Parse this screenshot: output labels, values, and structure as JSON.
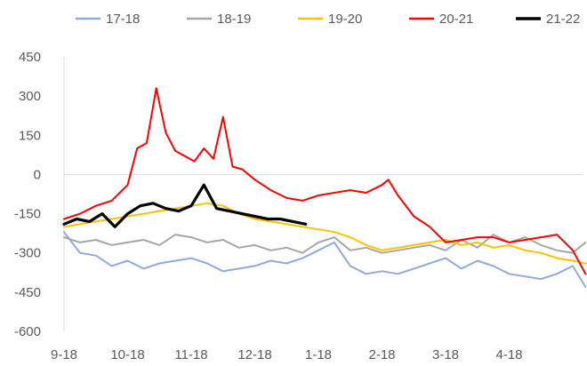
{
  "chart_data": {
    "type": "line",
    "legend_position": "top",
    "grid": false,
    "ylim": [
      -600,
      450
    ],
    "yticks": [
      450,
      300,
      150,
      0,
      -150,
      -300,
      -450,
      -600
    ],
    "xlim": [
      0,
      8.2
    ],
    "x_tick_labels": [
      "9-18",
      "10-18",
      "11-18",
      "12-18",
      "1-18",
      "2-18",
      "3-18",
      "4-18"
    ],
    "x_tick_positions": [
      0,
      1,
      2,
      3,
      4,
      5,
      6,
      7
    ],
    "series": [
      {
        "name": "17-18",
        "color": "#8faadc",
        "x": [
          0,
          0.25,
          0.5,
          0.75,
          1.0,
          1.25,
          1.5,
          1.75,
          2.0,
          2.25,
          2.5,
          2.75,
          3.0,
          3.25,
          3.5,
          3.75,
          4.0,
          4.25,
          4.5,
          4.75,
          5.0,
          5.25,
          5.5,
          5.75,
          6.0,
          6.25,
          6.5,
          6.75,
          7.0,
          7.25,
          7.5,
          7.75,
          8.0,
          8.2
        ],
        "values": [
          -220,
          -300,
          -310,
          -350,
          -330,
          -360,
          -340,
          -330,
          -320,
          -340,
          -370,
          -360,
          -350,
          -330,
          -340,
          -320,
          -290,
          -260,
          -350,
          -380,
          -370,
          -380,
          -360,
          -340,
          -320,
          -360,
          -330,
          -350,
          -380,
          -390,
          -400,
          -380,
          -350,
          -430
        ]
      },
      {
        "name": "18-19",
        "color": "#a6a6a6",
        "x": [
          0,
          0.25,
          0.5,
          0.75,
          1.0,
          1.25,
          1.5,
          1.75,
          2.0,
          2.25,
          2.5,
          2.75,
          3.0,
          3.25,
          3.5,
          3.75,
          4.0,
          4.25,
          4.5,
          4.75,
          5.0,
          5.25,
          5.5,
          5.75,
          6.0,
          6.25,
          6.5,
          6.75,
          7.0,
          7.25,
          7.5,
          7.75,
          8.0,
          8.2
        ],
        "values": [
          -240,
          -260,
          -250,
          -270,
          -260,
          -250,
          -270,
          -230,
          -240,
          -260,
          -250,
          -280,
          -270,
          -290,
          -280,
          -300,
          -260,
          -240,
          -290,
          -280,
          -300,
          -290,
          -280,
          -270,
          -290,
          -250,
          -280,
          -230,
          -260,
          -240,
          -270,
          -290,
          -300,
          -260
        ]
      },
      {
        "name": "19-20",
        "color": "#ffc000",
        "x": [
          0,
          0.25,
          0.5,
          0.75,
          1.0,
          1.25,
          1.5,
          1.75,
          2.0,
          2.25,
          2.5,
          2.75,
          3.0,
          3.25,
          3.5,
          3.75,
          4.0,
          4.25,
          4.5,
          4.75,
          5.0,
          5.25,
          5.5,
          5.75,
          6.0,
          6.25,
          6.5,
          6.75,
          7.0,
          7.25,
          7.5,
          7.75,
          8.0,
          8.2
        ],
        "values": [
          -200,
          -190,
          -180,
          -170,
          -160,
          -150,
          -140,
          -130,
          -120,
          -110,
          -120,
          -150,
          -170,
          -180,
          -190,
          -200,
          -210,
          -220,
          -240,
          -270,
          -290,
          -280,
          -270,
          -260,
          -250,
          -270,
          -260,
          -280,
          -270,
          -290,
          -300,
          -320,
          -330,
          -340
        ]
      },
      {
        "name": "20-21",
        "color": "#ff0000",
        "x": [
          0,
          0.25,
          0.5,
          0.75,
          1.0,
          1.15,
          1.3,
          1.45,
          1.6,
          1.75,
          1.9,
          2.05,
          2.2,
          2.35,
          2.5,
          2.65,
          2.8,
          3.0,
          3.25,
          3.5,
          3.75,
          4.0,
          4.25,
          4.5,
          4.75,
          5.0,
          5.1,
          5.25,
          5.5,
          5.75,
          6.0,
          6.25,
          6.5,
          6.75,
          7.0,
          7.25,
          7.5,
          7.75,
          8.0,
          8.2
        ],
        "values": [
          -170,
          -150,
          -120,
          -100,
          -40,
          100,
          120,
          330,
          160,
          90,
          70,
          50,
          100,
          60,
          220,
          30,
          20,
          -20,
          -60,
          -90,
          -100,
          -80,
          -70,
          -60,
          -70,
          -40,
          -20,
          -80,
          -160,
          -200,
          -260,
          -250,
          -240,
          -240,
          -260,
          -250,
          -240,
          -230,
          -290,
          -380
        ]
      },
      {
        "name": "21-22",
        "color": "#000000",
        "x": [
          0,
          0.2,
          0.4,
          0.6,
          0.8,
          1.0,
          1.2,
          1.4,
          1.6,
          1.8,
          2.0,
          2.2,
          2.4,
          2.6,
          2.8,
          3.0,
          3.2,
          3.4,
          3.6,
          3.8
        ],
        "values": [
          -190,
          -170,
          -180,
          -150,
          -200,
          -150,
          -120,
          -110,
          -130,
          -140,
          -120,
          -40,
          -130,
          -140,
          -150,
          -160,
          -170,
          -170,
          -180,
          -190
        ]
      }
    ]
  }
}
